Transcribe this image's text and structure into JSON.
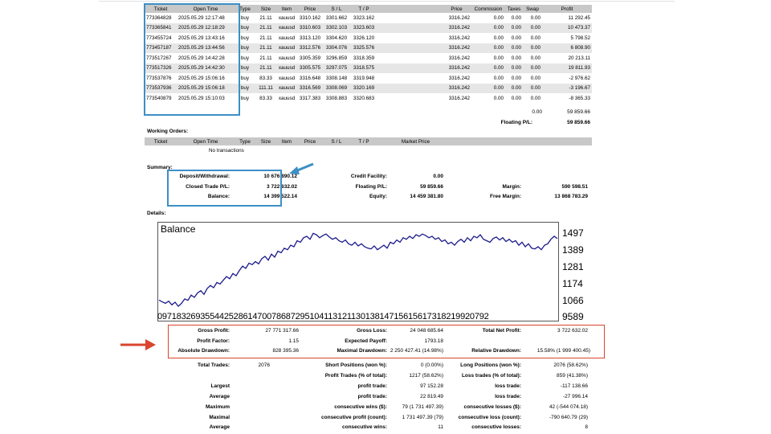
{
  "positions": {
    "headers": [
      "Ticket",
      "Open Time",
      "Type",
      "Size",
      "Item",
      "Price",
      "S / L",
      "T / P",
      "",
      "Price",
      "Commission",
      "Taxes",
      "Swap",
      "Profit"
    ],
    "rows": [
      [
        "773364828",
        "2025.05.29 12:17:48",
        "buy",
        "21.11",
        "xauusd",
        "3310.162",
        "3301.662",
        "3323.162",
        "",
        "3316.242",
        "0.00",
        "0.00",
        "0.00",
        "11 292.45"
      ],
      [
        "773365841",
        "2025.05.29 12:18:29",
        "buy",
        "21.11",
        "xauusd",
        "3310.603",
        "3302.103",
        "3323.603",
        "",
        "3316.242",
        "0.00",
        "0.00",
        "0.00",
        "10 473.37"
      ],
      [
        "773455724",
        "2025.05.29 13:43:16",
        "buy",
        "21.11",
        "xauusd",
        "3313.120",
        "3304.620",
        "3326.120",
        "",
        "3316.242",
        "0.00",
        "0.00",
        "0.00",
        "5 798.52"
      ],
      [
        "773457187",
        "2025.05.29 13:44:56",
        "buy",
        "21.11",
        "xauusd",
        "3312.576",
        "3304.076",
        "3325.576",
        "",
        "3316.242",
        "0.00",
        "0.00",
        "0.00",
        "6 808.90"
      ],
      [
        "773517267",
        "2025.05.29 14:42:28",
        "buy",
        "21.11",
        "xauusd",
        "3305.359",
        "3296.859",
        "3318.359",
        "",
        "3316.242",
        "0.00",
        "0.00",
        "0.00",
        "20 213.11"
      ],
      [
        "773517326",
        "2025.05.29 14:42:30",
        "buy",
        "21.11",
        "xauusd",
        "3305.575",
        "3297.075",
        "3318.575",
        "",
        "3316.242",
        "0.00",
        "0.00",
        "0.00",
        "19 811.93"
      ],
      [
        "773537876",
        "2025.05.29 15:06:16",
        "buy",
        "83.33",
        "xauusd",
        "3316.648",
        "3308.148",
        "3319.948",
        "",
        "3316.242",
        "0.00",
        "0.00",
        "0.00",
        "-2 976.62"
      ],
      [
        "773537936",
        "2025.05.29 15:06:18",
        "buy",
        "111.11",
        "xauusd",
        "3316.569",
        "3308.069",
        "3320.169",
        "",
        "3316.242",
        "0.00",
        "0.00",
        "0.00",
        "-3 196.67"
      ],
      [
        "773540879",
        "2025.05.29 15:10:03",
        "buy",
        "83.33",
        "xauusd",
        "3317.383",
        "3308.883",
        "3320.683",
        "",
        "3316.242",
        "0.00",
        "0.00",
        "0.00",
        "-8 365.33"
      ]
    ],
    "total_row": {
      "swap": "0.00",
      "profit": "59 859.66"
    },
    "floating_label": "Floating P/L:",
    "floating_value": "59 859.66"
  },
  "working_orders": {
    "title": "Working Orders:",
    "headers": [
      "Ticket",
      "Open Time",
      "Type",
      "Size",
      "Item",
      "Price",
      "S / L",
      "T / P",
      "Market Price"
    ],
    "empty_text": "No transactions"
  },
  "summary": {
    "title": "Summary:",
    "deposit_label": "Deposit/Withdrawal:",
    "deposit_value": "10 676 890.12",
    "closed_label": "Closed Trade P/L:",
    "closed_value": "3 722 632.02",
    "balance_label": "Balance:",
    "balance_value": "14 399 522.14",
    "credit_label": "Credit Facility:",
    "credit_value": "0.00",
    "floating_label": "Floating P/L:",
    "floating_value": "59 859.66",
    "equity_label": "Equity:",
    "equity_value": "14 459 381.80",
    "margin_label": "Margin:",
    "margin_value": "590 598.51",
    "free_margin_label": "Free Margin:",
    "free_margin_value": "13 868 783.29"
  },
  "details_title": "Details:",
  "chart_data": {
    "type": "line",
    "title": "Balance",
    "ylim": [
      1000,
      1550
    ],
    "yticks": [
      "1497",
      "1389",
      "1281",
      "1174",
      "1066",
      "9589"
    ],
    "xtick_text": "0971832693554425286147007868729510411312113013814715615617318219920792",
    "grid": false,
    "series": [
      {
        "name": "Balance",
        "color": "#1a1a8c",
        "values": [
          1052,
          1040,
          1030,
          1045,
          1020,
          1038,
          1010,
          1030,
          1060,
          1050,
          1085,
          1070,
          1100,
          1115,
          1090,
          1130,
          1150,
          1135,
          1170,
          1160,
          1185,
          1210,
          1195,
          1230,
          1215,
          1250,
          1280,
          1265,
          1300,
          1290,
          1310,
          1295,
          1330,
          1345,
          1320,
          1360,
          1340,
          1380,
          1370,
          1400,
          1390,
          1420,
          1410,
          1450,
          1440,
          1470,
          1480,
          1460,
          1500,
          1490,
          1470,
          1485,
          1495,
          1475,
          1460,
          1470,
          1450,
          1440,
          1455,
          1430,
          1420,
          1440,
          1415,
          1430,
          1410,
          1400,
          1395,
          1415,
          1390,
          1405,
          1420,
          1400,
          1440,
          1430,
          1455,
          1440,
          1470,
          1460,
          1480,
          1465,
          1490,
          1480,
          1495,
          1485,
          1470,
          1480,
          1460,
          1470,
          1445,
          1455,
          1430,
          1440,
          1420,
          1445,
          1460,
          1440,
          1470,
          1450,
          1480,
          1470,
          1490,
          1460,
          1450,
          1440,
          1465,
          1475,
          1455,
          1470,
          1445,
          1460,
          1440,
          1450,
          1420,
          1440,
          1410,
          1430,
          1400,
          1395,
          1410,
          1390,
          1420,
          1430,
          1460,
          1480,
          1465
        ]
      }
    ]
  },
  "stats": {
    "gross_profit_label": "Gross Profit:",
    "gross_profit": "27 771 317.66",
    "gross_loss_label": "Gross Loss:",
    "gross_loss": "24 048 685.64",
    "total_net_label": "Total Net Profit:",
    "total_net": "3 722 632.02",
    "profit_factor_label": "Profit Factor:",
    "profit_factor": "1.15",
    "expected_payoff_label": "Expected Payoff:",
    "expected_payoff": "1793.18",
    "abs_dd_label": "Absolute Drawdown:",
    "abs_dd": "828 395.36",
    "max_dd_label": "Maximal Drawdown:",
    "max_dd": "2 250 427.41 (14.98%)",
    "rel_dd_label": "Relative Drawdown:",
    "rel_dd": "15.58% (1 999 400.45)",
    "total_trades_label": "Total Trades:",
    "total_trades": "2076",
    "short_label": "Short Positions (won %):",
    "short": "0 (0.00%)",
    "long_label": "Long Positions (won %):",
    "long": "2076 (58.62%)",
    "profit_trades_label": "Profit Trades (% of total):",
    "profit_trades": "1217 (58.62%)",
    "loss_trades_label": "Loss trades (% of total):",
    "loss_trades": "859 (41.38%)",
    "largest_label": "Largest",
    "largest_profit_label": "profit trade:",
    "largest_profit": "97 152.28",
    "largest_loss_label": "loss trade:",
    "largest_loss": "-117 138.66",
    "average_label": "Average",
    "average_profit_label": "profit trade:",
    "average_profit": "22 819.49",
    "average_loss_label": "loss trade:",
    "average_loss": "-27 996.14",
    "maximum_label": "Maximum",
    "max_cons_wins_label": "consecutive wins ($):",
    "max_cons_wins": "79 (1 731 497.39)",
    "max_cons_losses_label": "consecutive losses ($):",
    "max_cons_losses": "42 (-544 074.18)",
    "maximal_label": "Maximal",
    "maximal_cons_profit_label": "consecutive profit (count):",
    "maximal_cons_profit": "1 731 497.39 (79)",
    "maximal_cons_loss_label": "consecutive loss (count):",
    "maximal_cons_loss": "-790 640.79 (29)",
    "avg2_label": "Average",
    "avg_cons_wins_label": "consecutive wins:",
    "avg_cons_wins": "11",
    "avg_cons_losses_label": "consecutive losses:",
    "avg_cons_losses": "8"
  }
}
